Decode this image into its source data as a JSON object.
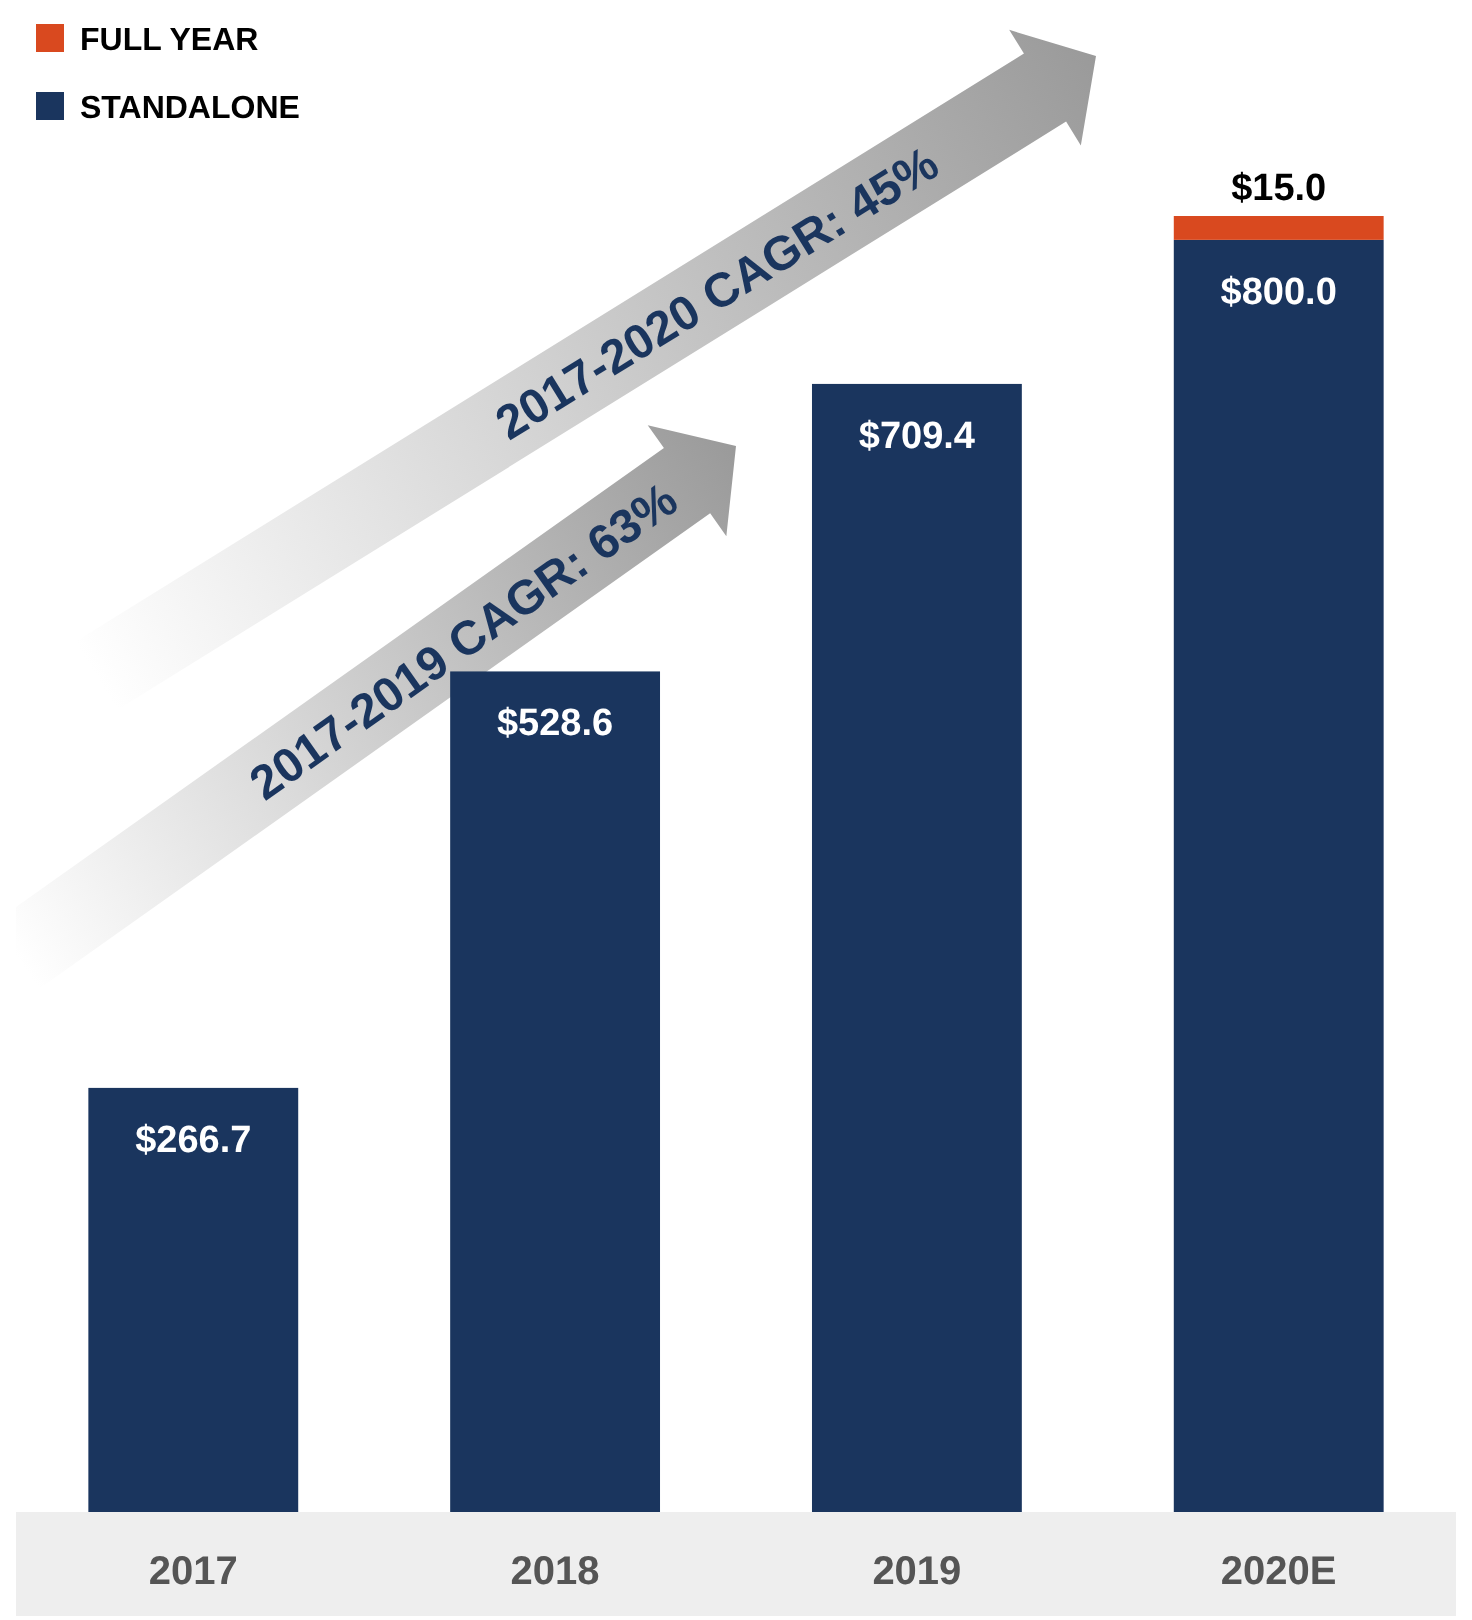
{
  "chart_data": {
    "type": "bar",
    "stacked": true,
    "categories": [
      "2017",
      "2018",
      "2019",
      "2020E"
    ],
    "series": [
      {
        "name": "STANDALONE",
        "color": "#1a355e",
        "values": [
          266.7,
          528.6,
          709.4,
          800.0
        ],
        "value_labels": [
          "$266.7",
          "$528.6",
          "$709.4",
          "$800.0"
        ]
      },
      {
        "name": "FULL YEAR",
        "color": "#d9491f",
        "values": [
          null,
          null,
          null,
          15.0
        ],
        "value_labels": [
          null,
          null,
          null,
          "$15.0"
        ]
      }
    ],
    "legend": "top left",
    "annotations": [
      "2017-2020 CAGR: 45%",
      "2017-2019 CAGR: 63%"
    ]
  }
}
